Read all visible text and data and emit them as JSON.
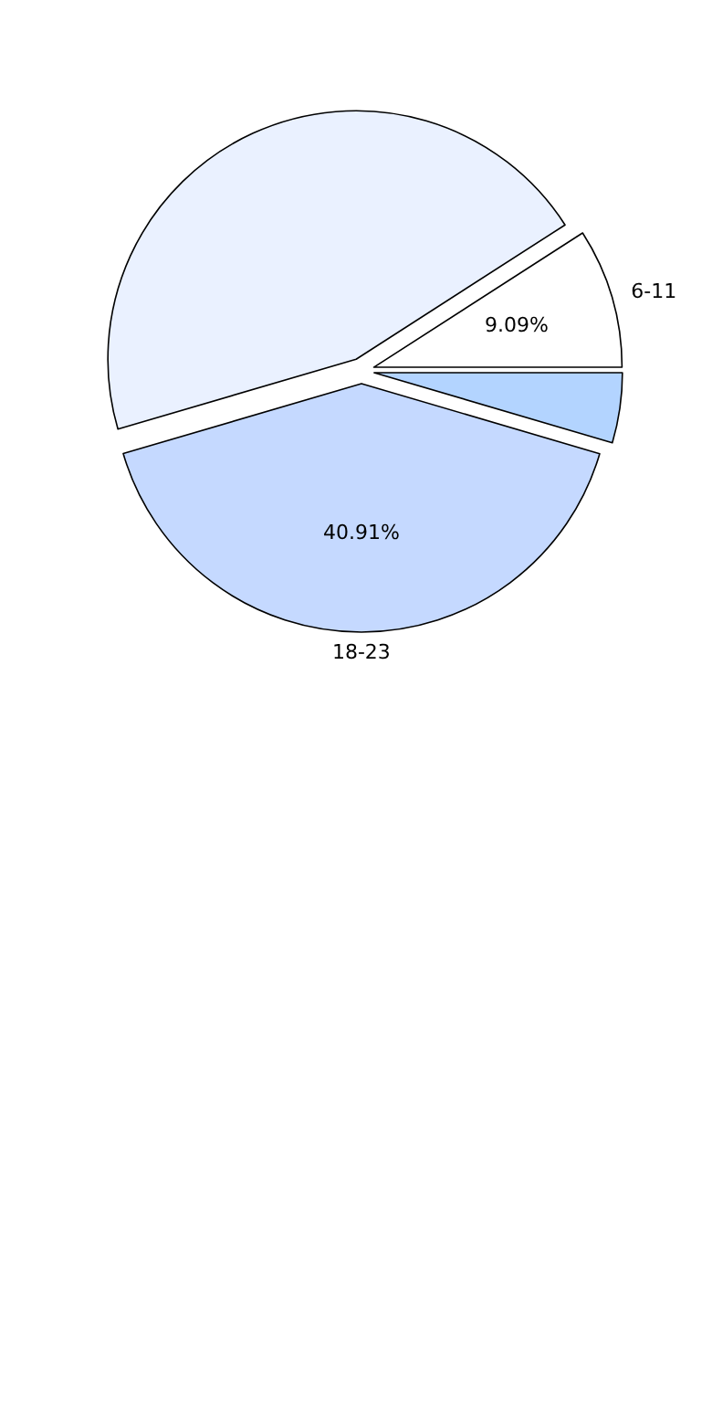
{
  "chart_data": {
    "type": "pie",
    "categories": [
      "6-11",
      null,
      "18-23",
      null
    ],
    "values": [
      9.09,
      45.45,
      40.91,
      4.55
    ],
    "colors": [
      "#ffffff",
      "#eaf1ff",
      "#c5d9ff",
      "#b3d4ff"
    ],
    "value_labels": [
      "9.09%",
      null,
      "40.91%",
      null
    ]
  }
}
